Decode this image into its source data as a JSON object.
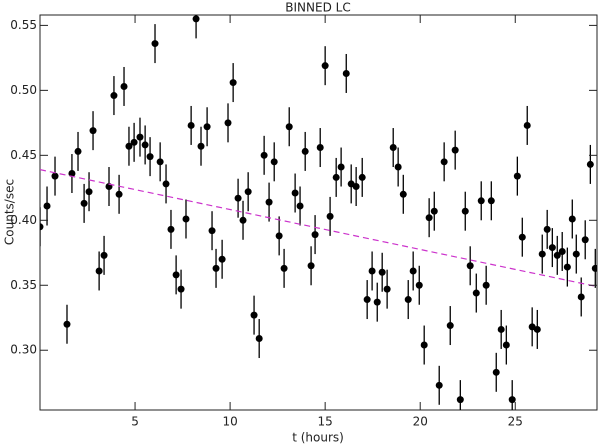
{
  "chart_data": {
    "type": "scatter",
    "title": "BINNED LC",
    "x_label": "t (hours)",
    "y_label": "Counts/sec",
    "series": [
      {
        "color": "#000000",
        "x": [
          0.0,
          0.37,
          0.79,
          1.42,
          1.68,
          2.0,
          2.32,
          2.58,
          2.79,
          3.11,
          3.37,
          3.63,
          3.89,
          4.16,
          4.42,
          4.68,
          4.95,
          5.26,
          5.53,
          5.79,
          6.05,
          6.32,
          6.63,
          6.89,
          7.16,
          7.42,
          7.68,
          7.95,
          8.21,
          8.47,
          8.79,
          9.05,
          9.26,
          9.58,
          9.89,
          10.16,
          10.42,
          10.68,
          10.95,
          11.26,
          11.53,
          11.79,
          12.05,
          12.32,
          12.58,
          12.84,
          13.11,
          13.42,
          13.68,
          13.95,
          14.26,
          14.47,
          14.74,
          15.0,
          15.26,
          15.58,
          15.84,
          16.11,
          16.37,
          16.63,
          16.95,
          17.21,
          17.47,
          17.74,
          18.0,
          18.26,
          18.58,
          18.84,
          19.11,
          19.37,
          19.63,
          19.95,
          20.21,
          20.47,
          20.74,
          21.0,
          21.26,
          21.58,
          21.84,
          22.11,
          22.37,
          22.63,
          22.95,
          23.21,
          23.47,
          23.74,
          24.0,
          24.26,
          24.53,
          24.84,
          25.11,
          25.37,
          25.63,
          25.89,
          26.16,
          26.42,
          26.68,
          26.95,
          27.21,
          27.47,
          27.74,
          28.0,
          28.21,
          28.47,
          28.68,
          28.95,
          29.21
        ],
        "values": [
          0.395,
          0.411,
          0.434,
          0.32,
          0.436,
          0.453,
          0.413,
          0.422,
          0.469,
          0.361,
          0.373,
          0.426,
          0.496,
          0.42,
          0.503,
          0.457,
          0.46,
          0.464,
          0.458,
          0.449,
          0.536,
          0.445,
          0.428,
          0.393,
          0.358,
          0.347,
          0.401,
          0.473,
          0.555,
          0.457,
          0.472,
          0.392,
          0.363,
          0.37,
          0.475,
          0.506,
          0.417,
          0.4,
          0.422,
          0.327,
          0.309,
          0.45,
          0.414,
          0.445,
          0.388,
          0.363,
          0.472,
          0.421,
          0.411,
          0.453,
          0.365,
          0.389,
          0.456,
          0.519,
          0.403,
          0.433,
          0.441,
          0.513,
          0.428,
          0.426,
          0.433,
          0.339,
          0.361,
          0.337,
          0.36,
          0.347,
          0.456,
          0.441,
          0.42,
          0.339,
          0.361,
          0.35,
          0.304,
          0.402,
          0.407,
          0.273,
          0.445,
          0.319,
          0.454,
          0.262,
          0.407,
          0.365,
          0.344,
          0.415,
          0.35,
          0.415,
          0.283,
          0.316,
          0.304,
          0.262,
          0.434,
          0.387,
          0.473,
          0.318,
          0.316,
          0.374,
          0.393,
          0.379,
          0.373,
          0.376,
          0.364,
          0.401,
          0.374,
          0.341,
          0.385,
          0.443,
          0.363
        ],
        "errors": [
          0.015,
          0.015,
          0.015,
          0.015,
          0.015,
          0.015,
          0.015,
          0.015,
          0.015,
          0.015,
          0.015,
          0.015,
          0.015,
          0.015,
          0.015,
          0.015,
          0.015,
          0.015,
          0.015,
          0.015,
          0.015,
          0.015,
          0.015,
          0.015,
          0.015,
          0.015,
          0.015,
          0.015,
          0.015,
          0.015,
          0.015,
          0.015,
          0.015,
          0.015,
          0.015,
          0.015,
          0.015,
          0.015,
          0.015,
          0.015,
          0.015,
          0.015,
          0.015,
          0.015,
          0.015,
          0.015,
          0.015,
          0.015,
          0.015,
          0.015,
          0.015,
          0.015,
          0.015,
          0.015,
          0.015,
          0.015,
          0.015,
          0.015,
          0.015,
          0.015,
          0.015,
          0.015,
          0.015,
          0.015,
          0.015,
          0.015,
          0.015,
          0.015,
          0.015,
          0.015,
          0.015,
          0.015,
          0.015,
          0.015,
          0.015,
          0.015,
          0.015,
          0.015,
          0.015,
          0.015,
          0.015,
          0.015,
          0.015,
          0.015,
          0.015,
          0.015,
          0.015,
          0.015,
          0.015,
          0.015,
          0.015,
          0.015,
          0.015,
          0.015,
          0.015,
          0.015,
          0.015,
          0.015,
          0.015,
          0.015,
          0.015,
          0.015,
          0.015,
          0.015,
          0.015,
          0.015,
          0.015
        ]
      }
    ],
    "fit": {
      "x": [
        0,
        29.3
      ],
      "values": [
        0.439,
        0.349
      ],
      "color": "#cc33cc"
    },
    "xlim": [
      0,
      29.3
    ],
    "ylim": [
      0.254,
      0.558
    ],
    "xticks": [
      5,
      10,
      15,
      20,
      25
    ],
    "yticks": [
      {
        "value": 0.3,
        "label": "0.30"
      },
      0.35,
      {
        "value": 0.4,
        "label": "0.40"
      },
      0.45,
      {
        "value": 0.5,
        "label": "0.50"
      },
      0.55
    ]
  }
}
